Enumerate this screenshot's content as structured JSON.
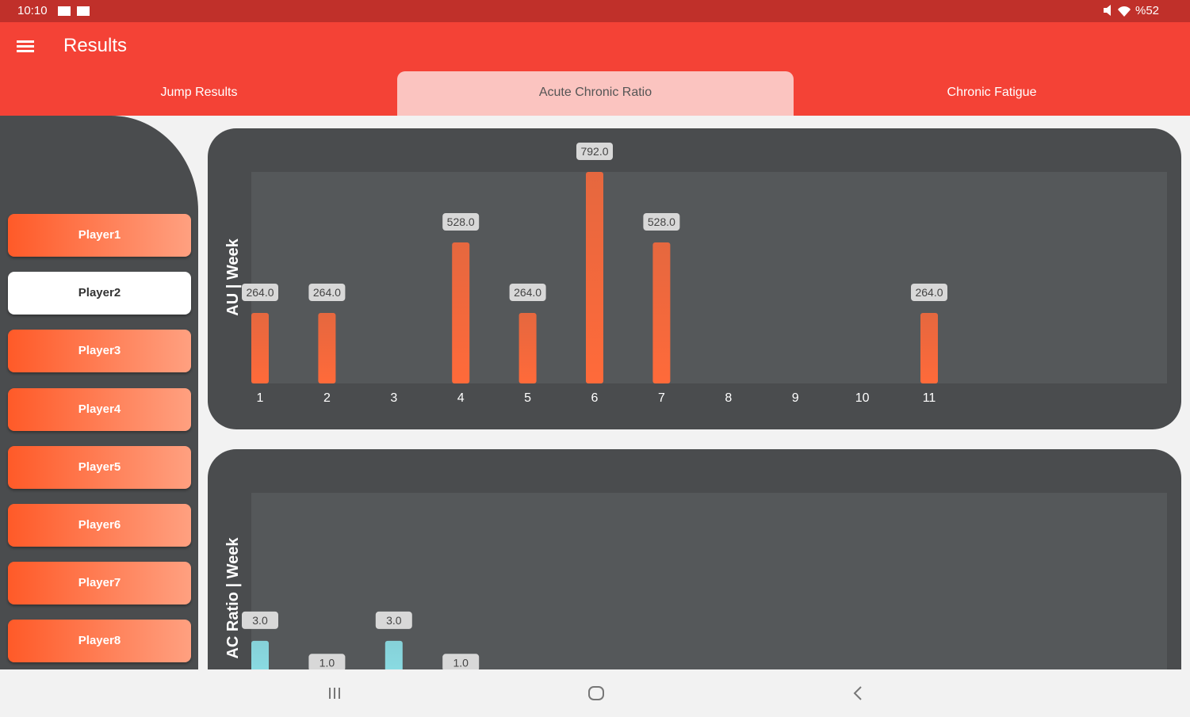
{
  "status_bar": {
    "time": "10:10",
    "battery": "%52"
  },
  "app_bar": {
    "title": "Results"
  },
  "tabs": [
    {
      "label": "Jump Results",
      "selected": false
    },
    {
      "label": "Acute Chronic Ratio",
      "selected": true
    },
    {
      "label": "Chronic Fatigue",
      "selected": false
    }
  ],
  "players": [
    {
      "label": "Player1",
      "selected": false
    },
    {
      "label": "Player2",
      "selected": true
    },
    {
      "label": "Player3",
      "selected": false
    },
    {
      "label": "Player4",
      "selected": false
    },
    {
      "label": "Player5",
      "selected": false
    },
    {
      "label": "Player6",
      "selected": false
    },
    {
      "label": "Player7",
      "selected": false
    },
    {
      "label": "Player8",
      "selected": false
    }
  ],
  "chart_data": [
    {
      "type": "bar",
      "y_label": "AU | Week",
      "color": "#ff6a3a",
      "categories": [
        "1",
        "2",
        "3",
        "4",
        "5",
        "6",
        "7",
        "8",
        "9",
        "10",
        "11"
      ],
      "values": [
        264,
        264,
        null,
        528,
        264,
        792,
        528,
        null,
        null,
        null,
        264
      ],
      "value_labels": [
        "264.0",
        "264.0",
        null,
        "528.0",
        "264.0",
        "792.0",
        "528.0",
        null,
        null,
        null,
        "264.0"
      ],
      "ylim": [
        0,
        792
      ]
    },
    {
      "type": "bar",
      "y_label": "AC Ratio | Week",
      "color": "#8ee6ee",
      "categories": [
        null,
        null,
        null,
        null
      ],
      "values": [
        3,
        1,
        3,
        1
      ],
      "value_labels": [
        "3.0",
        "1.0",
        "3.0",
        "1.0"
      ],
      "ylim": [
        0,
        10
      ]
    }
  ]
}
